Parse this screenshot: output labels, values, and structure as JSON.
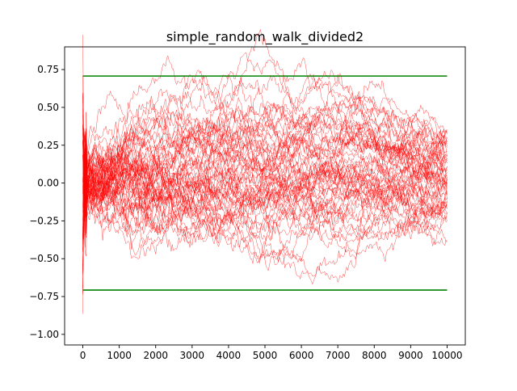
{
  "chart_data": {
    "type": "line",
    "title": "simple_random_walk_divided2",
    "xlabel": "",
    "ylabel": "",
    "xlim": [
      -500,
      10500
    ],
    "ylim": [
      -1.07,
      0.9
    ],
    "x_ticks": [
      0,
      1000,
      2000,
      3000,
      4000,
      5000,
      6000,
      7000,
      8000,
      9000,
      10000
    ],
    "x_tick_labels": [
      "0",
      "1000",
      "2000",
      "3000",
      "4000",
      "5000",
      "6000",
      "7000",
      "8000",
      "9000",
      "10000"
    ],
    "y_ticks": [
      0.75,
      0.5,
      0.25,
      0.0,
      -0.25,
      -0.5,
      -0.75,
      -1.0
    ],
    "y_tick_labels": [
      "0.75",
      "0.50",
      "0.25",
      "0.00",
      "−0.25",
      "−0.50",
      "−0.75",
      "−1.00"
    ],
    "grid": false,
    "legend": "none",
    "series_count_estimate": 60,
    "x_range": [
      0,
      10000
    ],
    "random_walk_colour": "#ff0000",
    "bound_colour": "#008000",
    "bounds": [
      {
        "x": [
          0,
          10000
        ],
        "y": [
          0.7071,
          0.7071
        ]
      },
      {
        "x": [
          0,
          10000
        ],
        "y": [
          -0.7071,
          -0.7071
        ]
      }
    ],
    "random_walk_final_values_estimate": [
      0.33,
      0.3,
      0.27,
      0.24,
      0.21,
      0.18,
      0.15,
      0.13,
      0.11,
      0.09,
      0.07,
      0.05,
      0.04,
      0.02,
      0.0,
      -0.02,
      -0.04,
      -0.06,
      -0.08,
      -0.1,
      -0.12,
      -0.14,
      -0.17,
      -0.2,
      -0.22,
      -0.25,
      -0.39
    ]
  }
}
